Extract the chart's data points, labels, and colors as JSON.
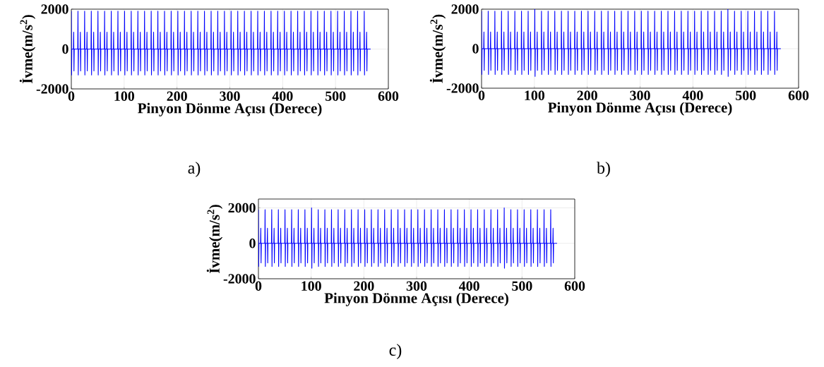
{
  "chart_data": [
    {
      "type": "line",
      "xlabel": "Pinyon Dönme Açısı (Derece)",
      "ylabel": "İvme(m/s$^{2}$)",
      "annotations": [
        "a)"
      ],
      "xlim": [
        0,
        600
      ],
      "ylim": [
        -2000,
        2000
      ],
      "xticks": [
        0,
        100,
        200,
        300,
        400,
        500,
        600
      ],
      "yticks": [
        -2000,
        0,
        2000
      ],
      "grid": true,
      "x": [
        0,
        0.5,
        1,
        4,
        4.5,
        5,
        5.5,
        12.1,
        12.6,
        13.1,
        13.6,
        16.6,
        17.1,
        17.6,
        18.1,
        24.7,
        25.2,
        25.7,
        26.2,
        29.2,
        29.7,
        30.2,
        30.7,
        37.3,
        37.8,
        38.3,
        38.8,
        41.8,
        42.3,
        42.8,
        43.3,
        49.9,
        50.4,
        50.9,
        51.4,
        54.4,
        54.9,
        55.4,
        55.9,
        62.5,
        63,
        63.5,
        64,
        67,
        67.5,
        68,
        68.5,
        75.1,
        75.6,
        76.1,
        76.6,
        79.6,
        80.1,
        80.6,
        81.1,
        87.7,
        88.2,
        88.7,
        89.2,
        92.2,
        92.7,
        93.2,
        93.7,
        100.3,
        100.8,
        101.3,
        101.8,
        104.8,
        105.3,
        105.8,
        106.3,
        112.9,
        113.4,
        113.9,
        114.4,
        117.4,
        117.9,
        118.4,
        118.9,
        125.5,
        126,
        126.5,
        127,
        130,
        130.5,
        131,
        131.5,
        138.1,
        138.6,
        139.1,
        139.6,
        142.6,
        143.1,
        143.6,
        144.1,
        150.7,
        151.2,
        151.7,
        152.2,
        155.2,
        155.7,
        156.2,
        156.7,
        163.3,
        163.8,
        164.3,
        164.8,
        167.8,
        168.3,
        168.8,
        169.3,
        175.9,
        176.4,
        176.9,
        177.4,
        180.4,
        180.9,
        181.4,
        181.9,
        188.5,
        189,
        189.5,
        190,
        193,
        193.5,
        194,
        194.5,
        201.1,
        201.6,
        202.1,
        202.6,
        205.6,
        206.1,
        206.6,
        207.1,
        213.7,
        214.2,
        214.7,
        215.2,
        218.2,
        218.7,
        219.2,
        219.7,
        226.3,
        226.8,
        227.3,
        227.8,
        230.8,
        231.3,
        231.8,
        232.3,
        238.9,
        239.4,
        239.9,
        240.4,
        243.4,
        243.9,
        244.4,
        244.9,
        251.5,
        252,
        252.5,
        253,
        256,
        256.5,
        257,
        257.5,
        264.1,
        264.6,
        265.1,
        265.6,
        268.6,
        269.1,
        269.6,
        270.1,
        276.7,
        277.2,
        277.7,
        278.2,
        281.2,
        281.7,
        282.2,
        282.7,
        289.3,
        289.8,
        290.3,
        290.8,
        293.8,
        294.3,
        294.8,
        295.3,
        301.9,
        302.4,
        302.9,
        303.4,
        306.4,
        306.9,
        307.4,
        307.9,
        314.5,
        315,
        315.5,
        316,
        319,
        319.5,
        320,
        320.5,
        327.1,
        327.6,
        328.1,
        328.6,
        331.6,
        332.1,
        332.6,
        333.1,
        339.7,
        340.2,
        340.7,
        341.2,
        344.2,
        344.7,
        345.2,
        345.7,
        352.3,
        352.8,
        353.3,
        353.8,
        356.8,
        357.3,
        357.8,
        358.3,
        364.9,
        365.4,
        365.9,
        366.4,
        369.4,
        369.9,
        370.4,
        370.9,
        377.5,
        378,
        378.5,
        379,
        382,
        382.5,
        383,
        383.5,
        390.1,
        390.6,
        391.1,
        391.6,
        394.6,
        395.1,
        395.6,
        396.1,
        402.7,
        403.2,
        403.7,
        404.2,
        407.2,
        407.7,
        408.2,
        408.7,
        415.3,
        415.8,
        416.3,
        416.8,
        419.8,
        420.3,
        420.8,
        421.3,
        427.9,
        428.4,
        428.9,
        429.4,
        432.4,
        432.9,
        433.4,
        433.9,
        440.5,
        441,
        441.5,
        442,
        445,
        445.5,
        446,
        446.5,
        453.1,
        453.6,
        454.1,
        454.6,
        457.6,
        458.1,
        458.6,
        459.1,
        465.7,
        466.2,
        466.7,
        467.2,
        470.2,
        470.7,
        471.2,
        471.7,
        478.3,
        478.8,
        479.3,
        479.8,
        482.8,
        483.3,
        483.8,
        484.3,
        490.9,
        491.4,
        491.9,
        492.4,
        495.4,
        495.9,
        496.4,
        496.9,
        503.5,
        504,
        504.5,
        505,
        508,
        508.5,
        509,
        509.5,
        516.1,
        516.6,
        517.1,
        517.6,
        520.6,
        521.1,
        521.6,
        522.1,
        528.7,
        529.2,
        529.7,
        530.2,
        533.2,
        533.7,
        534.2,
        534.7,
        541.3,
        541.8,
        542.3,
        542.8,
        545.8,
        546.3,
        546.8,
        547.3,
        553.9,
        554.4,
        554.9,
        555.4,
        558.4,
        558.9,
        559.4,
        559.9,
        566.5
      ],
      "series": [
        {
          "color": "#0000ff",
          "values": [
            1900,
            -1300,
            0,
            0,
            850,
            -1100,
            0,
            0,
            1900,
            -1300,
            0,
            0,
            850,
            -1100,
            0,
            0,
            1900,
            -1300,
            0,
            0,
            850,
            -1100,
            0,
            0,
            1900,
            -1300,
            0,
            0,
            850,
            -1100,
            0,
            0,
            1900,
            -1300,
            0,
            0,
            850,
            -1100,
            0,
            0,
            1900,
            -1300,
            0,
            0,
            850,
            -1100,
            0,
            0,
            1900,
            -1300,
            0,
            0,
            850,
            -1100,
            0,
            0,
            1900,
            -1300,
            0,
            0,
            850,
            -1100,
            0,
            0,
            1900,
            -1300,
            0,
            0,
            850,
            -1100,
            0,
            0,
            1900,
            -1300,
            0,
            0,
            850,
            -1100,
            0,
            0,
            1900,
            -1300,
            0,
            0,
            850,
            -1100,
            0,
            0,
            1900,
            -1300,
            0,
            0,
            850,
            -1100,
            0,
            0,
            1900,
            -1300,
            0,
            0,
            850,
            -1100,
            0,
            0,
            1900,
            -1300,
            0,
            0,
            850,
            -1100,
            0,
            0,
            1900,
            -1300,
            0,
            0,
            850,
            -1100,
            0,
            0,
            1900,
            -1300,
            0,
            0,
            850,
            -1100,
            0,
            0,
            1900,
            -1300,
            0,
            0,
            850,
            -1100,
            0,
            0,
            1900,
            -1300,
            0,
            0,
            850,
            -1100,
            0,
            0,
            1900,
            -1300,
            0,
            0,
            850,
            -1100,
            0,
            0,
            1900,
            -1300,
            0,
            0,
            850,
            -1100,
            0,
            0,
            1900,
            -1300,
            0,
            0,
            850,
            -1100,
            0,
            0,
            1900,
            -1300,
            0,
            0,
            850,
            -1100,
            0,
            0,
            1900,
            -1300,
            0,
            0,
            850,
            -1100,
            0,
            0,
            1900,
            -1300,
            0,
            0,
            850,
            -1100,
            0,
            0,
            1900,
            -1300,
            0,
            0,
            850,
            -1100,
            0,
            0,
            1900,
            -1300,
            0,
            0,
            850,
            -1100,
            0,
            0,
            1900,
            -1300,
            0,
            0,
            850,
            -1100,
            0,
            0,
            1900,
            -1300,
            0,
            0,
            850,
            -1100,
            0,
            0,
            1900,
            -1300,
            0,
            0,
            850,
            -1100,
            0,
            0,
            1900,
            -1300,
            0,
            0,
            850,
            -1100,
            0,
            0,
            1900,
            -1300,
            0,
            0,
            850,
            -1100,
            0,
            0,
            1900,
            -1300,
            0,
            0,
            850,
            -1100,
            0,
            0,
            1900,
            -1300,
            0,
            0,
            850,
            -1100,
            0,
            0,
            1900,
            -1300,
            0,
            0,
            850,
            -1100,
            0,
            0,
            1900,
            -1300,
            0,
            0,
            850,
            -1100,
            0,
            0,
            1900,
            -1300,
            0,
            0,
            850,
            -1100,
            0,
            0,
            1900,
            -1300,
            0,
            0,
            850,
            -1100,
            0,
            0,
            1900,
            -1300,
            0,
            0,
            850,
            -1100,
            0,
            0,
            1900,
            -1300,
            0,
            0,
            850,
            -1100,
            0,
            0,
            1900,
            -1300,
            0,
            0,
            850,
            -1100,
            0,
            0,
            1900,
            -1300,
            0,
            0,
            850,
            -1100,
            0,
            0,
            1900,
            -1300,
            0,
            0,
            850,
            -1100,
            0,
            0,
            1900,
            -1300,
            0,
            0,
            850,
            -1100,
            0,
            0,
            1900,
            -1300,
            0,
            0,
            850,
            -1100,
            0,
            0,
            1900,
            -1300,
            0,
            0,
            850,
            -1100,
            0,
            0
          ]
        }
      ]
    },
    {
      "type": "line",
      "xlabel": "Pinyon Dönme Açısı (Derece)",
      "ylabel": "İvme(m/s$^{2}$)",
      "annotations": [
        "b)"
      ],
      "xlim": [
        0,
        600
      ],
      "ylim": [
        -2000,
        2000
      ],
      "xticks": [
        0,
        100,
        200,
        300,
        400,
        500,
        600
      ],
      "yticks": [
        -2000,
        0,
        2000
      ],
      "grid": true,
      "x": [
        0,
        0.5,
        1,
        4,
        4.5,
        5,
        5.5,
        12.1,
        12.6,
        13.1,
        13.6,
        16.6,
        17.1,
        17.6,
        18.1,
        24.7,
        25.2,
        25.7,
        26.2,
        29.2,
        29.7,
        30.2,
        30.7,
        37.3,
        37.8,
        38.3,
        38.8,
        41.8,
        42.3,
        42.8,
        43.3,
        49.9,
        50.4,
        50.9,
        51.4,
        54.4,
        54.9,
        55.4,
        55.9,
        62.5,
        63,
        63.5,
        64,
        67,
        67.5,
        68,
        68.5,
        75.1,
        75.6,
        76.1,
        76.6,
        79.6,
        80.1,
        80.6,
        81.1,
        87.7,
        88.2,
        88.7,
        89.2,
        92.2,
        92.7,
        93.2,
        93.7,
        100.3,
        100.8,
        101.3,
        101.8,
        104.8,
        105.3,
        105.8,
        106.3,
        112.9,
        113.4,
        113.9,
        114.4,
        117.4,
        117.9,
        118.4,
        118.9,
        125.5,
        126,
        126.5,
        127,
        130,
        130.5,
        131,
        131.5,
        138.1,
        138.6,
        139.1,
        139.6,
        142.6,
        143.1,
        143.6,
        144.1,
        150.7,
        151.2,
        151.7,
        152.2,
        155.2,
        155.7,
        156.2,
        156.7,
        163.3,
        163.8,
        164.3,
        164.8,
        167.8,
        168.3,
        168.8,
        169.3,
        175.9,
        176.4,
        176.9,
        177.4,
        180.4,
        180.9,
        181.4,
        181.9,
        188.5,
        189,
        189.5,
        190,
        193,
        193.5,
        194,
        194.5,
        201.1,
        201.6,
        202.1,
        202.6,
        205.6,
        206.1,
        206.6,
        207.1,
        213.7,
        214.2,
        214.7,
        215.2,
        218.2,
        218.7,
        219.2,
        219.7,
        226.3,
        226.8,
        227.3,
        227.8,
        230.8,
        231.3,
        231.8,
        232.3,
        238.9,
        239.4,
        239.9,
        240.4,
        243.4,
        243.9,
        244.4,
        244.9,
        251.5,
        252,
        252.5,
        253,
        256,
        256.5,
        257,
        257.5,
        264.1,
        264.6,
        265.1,
        265.6,
        268.6,
        269.1,
        269.6,
        270.1,
        276.7,
        277.2,
        277.7,
        278.2,
        281.2,
        281.7,
        282.2,
        282.7,
        289.3,
        289.8,
        290.3,
        290.8,
        293.8,
        294.3,
        294.8,
        295.3,
        301.9,
        302.4,
        302.9,
        303.4,
        306.4,
        306.9,
        307.4,
        307.9,
        314.5,
        315,
        315.5,
        316,
        319,
        319.5,
        320,
        320.5,
        327.1,
        327.6,
        328.1,
        328.6,
        331.6,
        332.1,
        332.6,
        333.1,
        339.7,
        340.2,
        340.7,
        341.2,
        344.2,
        344.7,
        345.2,
        345.7,
        352.3,
        352.8,
        353.3,
        353.8,
        356.8,
        357.3,
        357.8,
        358.3,
        364.9,
        365.4,
        365.9,
        366.4,
        369.4,
        369.9,
        370.4,
        370.9,
        377.5,
        378,
        378.5,
        379,
        382,
        382.5,
        383,
        383.5,
        390.1,
        390.6,
        391.1,
        391.6,
        394.6,
        395.1,
        395.6,
        396.1,
        402.7,
        403.2,
        403.7,
        404.2,
        407.2,
        407.7,
        408.2,
        408.7,
        415.3,
        415.8,
        416.3,
        416.8,
        419.8,
        420.3,
        420.8,
        421.3,
        427.9,
        428.4,
        428.9,
        429.4,
        432.4,
        432.9,
        433.4,
        433.9,
        440.5,
        441,
        441.5,
        442,
        445,
        445.5,
        446,
        446.5,
        453.1,
        453.6,
        454.1,
        454.6,
        457.6,
        458.1,
        458.6,
        459.1,
        465.7,
        466.2,
        466.7,
        467.2,
        470.2,
        470.7,
        471.2,
        471.7,
        478.3,
        478.8,
        479.3,
        479.8,
        482.8,
        483.3,
        483.8,
        484.3,
        490.9,
        491.4,
        491.9,
        492.4,
        495.4,
        495.9,
        496.4,
        496.9,
        503.5,
        504,
        504.5,
        505,
        508,
        508.5,
        509,
        509.5,
        516.1,
        516.6,
        517.1,
        517.6,
        520.6,
        521.1,
        521.6,
        522.1,
        528.7,
        529.2,
        529.7,
        530.2,
        533.2,
        533.7,
        534.2,
        534.7,
        541.3,
        541.8,
        542.3,
        542.8,
        545.8,
        546.3,
        546.8,
        547.3,
        553.9,
        554.4,
        554.9,
        555.4,
        558.4,
        558.9,
        559.4,
        559.9,
        566.5
      ],
      "series": [
        {
          "color": "#0000ff",
          "values": [
            1900,
            -1300,
            0,
            0,
            850,
            -1100,
            0,
            0,
            1900,
            -1300,
            0,
            0,
            850,
            -1100,
            0,
            0,
            1900,
            -1300,
            0,
            0,
            850,
            -1100,
            0,
            0,
            1900,
            -1300,
            0,
            0,
            850,
            -1100,
            0,
            0,
            1900,
            -1300,
            0,
            0,
            850,
            -1100,
            0,
            0,
            1900,
            -1300,
            0,
            0,
            850,
            -1100,
            0,
            0,
            1900,
            -1300,
            0,
            0,
            850,
            -1100,
            0,
            0,
            1900,
            -1300,
            0,
            0,
            850,
            -1100,
            0,
            0,
            2000,
            -1400,
            0,
            0,
            850,
            -1100,
            0,
            0,
            1900,
            -1300,
            0,
            0,
            850,
            -1100,
            0,
            0,
            1900,
            -1300,
            0,
            0,
            850,
            -1100,
            0,
            0,
            1900,
            -1300,
            0,
            0,
            850,
            -1100,
            0,
            0,
            1900,
            -1300,
            0,
            0,
            850,
            -1100,
            0,
            0,
            1900,
            -1300,
            0,
            0,
            850,
            -1100,
            0,
            0,
            1900,
            -1300,
            0,
            0,
            850,
            -1100,
            0,
            0,
            1900,
            -1300,
            0,
            0,
            850,
            -1100,
            0,
            0,
            1900,
            -1300,
            0,
            0,
            850,
            -1100,
            0,
            0,
            1900,
            -1300,
            0,
            0,
            850,
            -1100,
            0,
            0,
            1900,
            -1300,
            0,
            0,
            850,
            -1100,
            0,
            0,
            1900,
            -1300,
            0,
            0,
            850,
            -1100,
            0,
            0,
            1900,
            -1300,
            0,
            0,
            850,
            -1100,
            0,
            0,
            1900,
            -1300,
            0,
            0,
            850,
            -1100,
            0,
            0,
            1900,
            -1300,
            0,
            0,
            850,
            -1100,
            0,
            0,
            1900,
            -1300,
            0,
            0,
            850,
            -1100,
            0,
            0,
            1900,
            -1300,
            0,
            0,
            850,
            -1100,
            0,
            0,
            1900,
            -1300,
            0,
            0,
            850,
            -1100,
            0,
            0,
            1900,
            -1300,
            0,
            0,
            850,
            -1100,
            0,
            0,
            1900,
            -1300,
            0,
            0,
            850,
            -1100,
            0,
            0,
            1900,
            -1300,
            0,
            0,
            850,
            -1100,
            0,
            0,
            1900,
            -1300,
            0,
            0,
            850,
            -1100,
            0,
            0,
            1900,
            -1300,
            0,
            0,
            850,
            -1100,
            0,
            0,
            1900,
            -1300,
            0,
            0,
            850,
            -1100,
            0,
            0,
            1900,
            -1300,
            0,
            0,
            850,
            -1100,
            0,
            0,
            1900,
            -1300,
            0,
            0,
            850,
            -1100,
            0,
            0,
            1900,
            -1300,
            0,
            0,
            850,
            -1100,
            0,
            0,
            1900,
            -1300,
            0,
            0,
            850,
            -1100,
            0,
            0,
            1900,
            -1300,
            0,
            0,
            850,
            -1100,
            0,
            0,
            2000,
            -1400,
            0,
            0,
            850,
            -1100,
            0,
            0,
            1900,
            -1300,
            0,
            0,
            850,
            -1100,
            0,
            0,
            1900,
            -1300,
            0,
            0,
            850,
            -1100,
            0,
            0,
            1900,
            -1300,
            0,
            0,
            850,
            -1100,
            0,
            0,
            1900,
            -1300,
            0,
            0,
            850,
            -1100,
            0,
            0,
            1900,
            -1300,
            0,
            0,
            850,
            -1100,
            0,
            0,
            1900,
            -1300,
            0,
            0,
            850,
            -1100,
            0,
            0,
            1900,
            -1300,
            0,
            0,
            850,
            -1100,
            0,
            0
          ]
        }
      ]
    },
    {
      "type": "line",
      "xlabel": "Pinyon Dönme Açısı (Derece)",
      "ylabel": "İvme(m/s$^{2}$)",
      "annotations": [
        "c)"
      ],
      "xlim": [
        0,
        600
      ],
      "ylim": [
        -2000,
        2500
      ],
      "xticks": [
        0,
        100,
        200,
        300,
        400,
        500,
        600
      ],
      "yticks": [
        -2000,
        0,
        2000
      ],
      "grid": true,
      "x": [
        0,
        0.5,
        1,
        4,
        4.5,
        5,
        5.5,
        12.1,
        12.6,
        13.1,
        13.6,
        16.6,
        17.1,
        17.6,
        18.1,
        24.7,
        25.2,
        25.7,
        26.2,
        29.2,
        29.7,
        30.2,
        30.7,
        37.3,
        37.8,
        38.3,
        38.8,
        41.8,
        42.3,
        42.8,
        43.3,
        49.9,
        50.4,
        50.9,
        51.4,
        54.4,
        54.9,
        55.4,
        55.9,
        62.5,
        63,
        63.5,
        64,
        67,
        67.5,
        68,
        68.5,
        75.1,
        75.6,
        76.1,
        76.6,
        79.6,
        80.1,
        80.6,
        81.1,
        87.7,
        88.2,
        88.7,
        89.2,
        92.2,
        92.7,
        93.2,
        93.7,
        100.3,
        100.8,
        101.3,
        101.8,
        104.8,
        105.3,
        105.8,
        106.3,
        112.9,
        113.4,
        113.9,
        114.4,
        117.4,
        117.9,
        118.4,
        118.9,
        125.5,
        126,
        126.5,
        127,
        130,
        130.5,
        131,
        131.5,
        138.1,
        138.6,
        139.1,
        139.6,
        142.6,
        143.1,
        143.6,
        144.1,
        150.7,
        151.2,
        151.7,
        152.2,
        155.2,
        155.7,
        156.2,
        156.7,
        163.3,
        163.8,
        164.3,
        164.8,
        167.8,
        168.3,
        168.8,
        169.3,
        175.9,
        176.4,
        176.9,
        177.4,
        180.4,
        180.9,
        181.4,
        181.9,
        188.5,
        189,
        189.5,
        190,
        193,
        193.5,
        194,
        194.5,
        201.1,
        201.6,
        202.1,
        202.6,
        205.6,
        206.1,
        206.6,
        207.1,
        213.7,
        214.2,
        214.7,
        215.2,
        218.2,
        218.7,
        219.2,
        219.7,
        226.3,
        226.8,
        227.3,
        227.8,
        230.8,
        231.3,
        231.8,
        232.3,
        238.9,
        239.4,
        239.9,
        240.4,
        243.4,
        243.9,
        244.4,
        244.9,
        251.5,
        252,
        252.5,
        253,
        256,
        256.5,
        257,
        257.5,
        264.1,
        264.6,
        265.1,
        265.6,
        268.6,
        269.1,
        269.6,
        270.1,
        276.7,
        277.2,
        277.7,
        278.2,
        281.2,
        281.7,
        282.2,
        282.7,
        289.3,
        289.8,
        290.3,
        290.8,
        293.8,
        294.3,
        294.8,
        295.3,
        301.9,
        302.4,
        302.9,
        303.4,
        306.4,
        306.9,
        307.4,
        307.9,
        314.5,
        315,
        315.5,
        316,
        319,
        319.5,
        320,
        320.5,
        327.1,
        327.6,
        328.1,
        328.6,
        331.6,
        332.1,
        332.6,
        333.1,
        339.7,
        340.2,
        340.7,
        341.2,
        344.2,
        344.7,
        345.2,
        345.7,
        352.3,
        352.8,
        353.3,
        353.8,
        356.8,
        357.3,
        357.8,
        358.3,
        364.9,
        365.4,
        365.9,
        366.4,
        369.4,
        369.9,
        370.4,
        370.9,
        377.5,
        378,
        378.5,
        379,
        382,
        382.5,
        383,
        383.5,
        390.1,
        390.6,
        391.1,
        391.6,
        394.6,
        395.1,
        395.6,
        396.1,
        402.7,
        403.2,
        403.7,
        404.2,
        407.2,
        407.7,
        408.2,
        408.7,
        415.3,
        415.8,
        416.3,
        416.8,
        419.8,
        420.3,
        420.8,
        421.3,
        427.9,
        428.4,
        428.9,
        429.4,
        432.4,
        432.9,
        433.4,
        433.9,
        440.5,
        441,
        441.5,
        442,
        445,
        445.5,
        446,
        446.5,
        453.1,
        453.6,
        454.1,
        454.6,
        457.6,
        458.1,
        458.6,
        459.1,
        465.7,
        466.2,
        466.7,
        467.2,
        470.2,
        470.7,
        471.2,
        471.7,
        478.3,
        478.8,
        479.3,
        479.8,
        482.8,
        483.3,
        483.8,
        484.3,
        490.9,
        491.4,
        491.9,
        492.4,
        495.4,
        495.9,
        496.4,
        496.9,
        503.5,
        504,
        504.5,
        505,
        508,
        508.5,
        509,
        509.5,
        516.1,
        516.6,
        517.1,
        517.6,
        520.6,
        521.1,
        521.6,
        522.1,
        528.7,
        529.2,
        529.7,
        530.2,
        533.2,
        533.7,
        534.2,
        534.7,
        541.3,
        541.8,
        542.3,
        542.8,
        545.8,
        546.3,
        546.8,
        547.3,
        553.9,
        554.4,
        554.9,
        555.4,
        558.4,
        558.9,
        559.4,
        559.9,
        566.5
      ],
      "series": [
        {
          "color": "#0000ff",
          "values": [
            1900,
            -1300,
            0,
            0,
            850,
            -1100,
            0,
            0,
            1900,
            -1300,
            0,
            0,
            850,
            -1100,
            0,
            0,
            1900,
            -1300,
            0,
            0,
            850,
            -1100,
            0,
            0,
            1900,
            -1300,
            0,
            0,
            850,
            -1100,
            0,
            0,
            1900,
            -1300,
            0,
            0,
            850,
            -1100,
            0,
            0,
            1900,
            -1300,
            0,
            0,
            850,
            -1100,
            0,
            0,
            1900,
            -1300,
            0,
            0,
            850,
            -1100,
            0,
            0,
            1900,
            -1300,
            0,
            0,
            850,
            -1100,
            0,
            0,
            2000,
            -1400,
            0,
            0,
            850,
            -1100,
            0,
            0,
            1900,
            -1300,
            0,
            0,
            850,
            -1100,
            0,
            0,
            1900,
            -1300,
            0,
            0,
            850,
            -1100,
            0,
            0,
            1900,
            -1300,
            0,
            0,
            850,
            -1100,
            0,
            0,
            1900,
            -1300,
            0,
            0,
            850,
            -1100,
            0,
            0,
            1900,
            -1300,
            0,
            0,
            850,
            -1100,
            0,
            0,
            1900,
            -1300,
            0,
            0,
            850,
            -1100,
            0,
            0,
            1900,
            -1300,
            0,
            0,
            850,
            -1100,
            0,
            0,
            1900,
            -1300,
            0,
            0,
            850,
            -1100,
            0,
            0,
            1900,
            -1300,
            0,
            0,
            850,
            -1100,
            0,
            0,
            1900,
            -1300,
            0,
            0,
            850,
            -1100,
            0,
            0,
            1900,
            -1300,
            0,
            0,
            850,
            -1100,
            0,
            0,
            1900,
            -1300,
            0,
            0,
            850,
            -1100,
            0,
            0,
            1900,
            -1300,
            0,
            0,
            850,
            -1100,
            0,
            0,
            1900,
            -1300,
            0,
            0,
            850,
            -1100,
            0,
            0,
            1900,
            -1300,
            0,
            0,
            850,
            -1100,
            0,
            0,
            1900,
            -1300,
            0,
            0,
            850,
            -1100,
            0,
            0,
            1900,
            -1300,
            0,
            0,
            850,
            -1100,
            0,
            0,
            1900,
            -1300,
            0,
            0,
            850,
            -1100,
            0,
            0,
            1900,
            -1300,
            0,
            0,
            850,
            -1100,
            0,
            0,
            1900,
            -1300,
            0,
            0,
            850,
            -1100,
            0,
            0,
            1900,
            -1300,
            0,
            0,
            850,
            -1100,
            0,
            0,
            1900,
            -1300,
            0,
            0,
            850,
            -1100,
            0,
            0,
            1900,
            -1300,
            0,
            0,
            850,
            -1100,
            0,
            0,
            1900,
            -1300,
            0,
            0,
            850,
            -1100,
            0,
            0,
            1900,
            -1300,
            0,
            0,
            850,
            -1100,
            0,
            0,
            1900,
            -1300,
            0,
            0,
            850,
            -1100,
            0,
            0,
            1900,
            -1300,
            0,
            0,
            850,
            -1100,
            0,
            0,
            1900,
            -1300,
            0,
            0,
            850,
            -1100,
            0,
            0,
            2000,
            -1400,
            0,
            0,
            850,
            -1100,
            0,
            0,
            1900,
            -1300,
            0,
            0,
            850,
            -1100,
            0,
            0,
            1900,
            -1300,
            0,
            0,
            850,
            -1100,
            0,
            0,
            1900,
            -1300,
            0,
            0,
            850,
            -1100,
            0,
            0,
            1900,
            -1300,
            0,
            0,
            850,
            -1100,
            0,
            0,
            1900,
            -1300,
            0,
            0,
            850,
            -1100,
            0,
            0,
            1900,
            -1300,
            0,
            0,
            850,
            -1100,
            0,
            0,
            1900,
            -1300,
            0,
            0,
            850,
            -1100,
            0,
            0
          ]
        }
      ]
    }
  ]
}
